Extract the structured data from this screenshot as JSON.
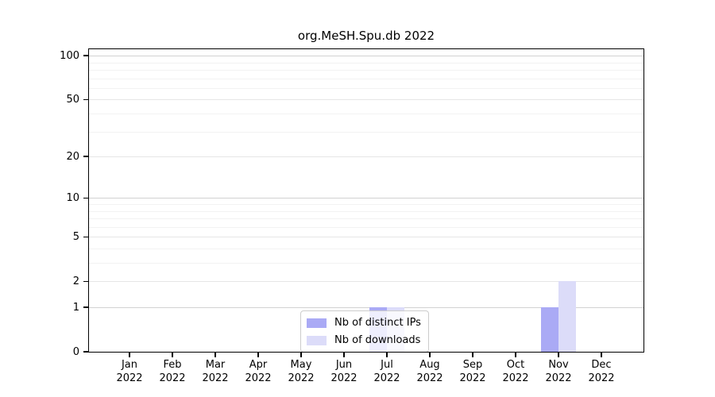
{
  "title": "org.MeSH.Spu.db 2022",
  "chart_data": {
    "type": "bar",
    "title": "org.MeSH.Spu.db 2022",
    "categories": [
      "Jan",
      "Feb",
      "Mar",
      "Apr",
      "May",
      "Jun",
      "Jul",
      "Aug",
      "Sep",
      "Oct",
      "Nov",
      "Dec"
    ],
    "year_label": "2022",
    "series": [
      {
        "name": "Nb of distinct IPs",
        "color": "#aaaaf5",
        "values": [
          0,
          0,
          0,
          0,
          0,
          0,
          1,
          0,
          0,
          0,
          1,
          0
        ]
      },
      {
        "name": "Nb of downloads",
        "color": "#dcdcf9",
        "values": [
          0,
          0,
          0,
          0,
          0,
          0,
          1,
          0,
          0,
          0,
          2,
          0
        ]
      }
    ],
    "xlabel": "",
    "ylabel": "",
    "y_scale": "log10(value+1)",
    "y_ticks": [
      0,
      1,
      2,
      5,
      10,
      20,
      50,
      100
    ],
    "y_minor_ticks": [
      3,
      4,
      6,
      7,
      8,
      9,
      30,
      40,
      60,
      70,
      80,
      90
    ],
    "ylim": [
      0,
      112
    ],
    "grid": true,
    "legend_position": "inside-bottom-center"
  }
}
